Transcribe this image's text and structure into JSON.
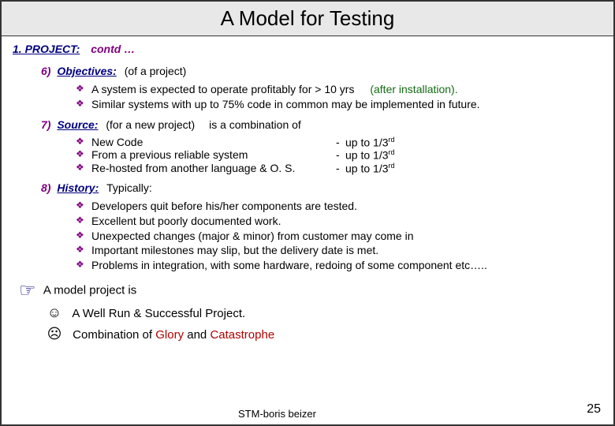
{
  "title": "A Model for Testing",
  "project": {
    "num_label": "1.  PROJECT:",
    "contd": "contd …"
  },
  "sections": {
    "s6": {
      "num": "6)",
      "title": "Objectives:",
      "desc": "(of a project)",
      "b1_a": "A system is expected to operate profitably for > 10 yrs",
      "b1_note": "(after installation).",
      "b2": "Similar systems with up to 75% code in common may be implemented in future."
    },
    "s7": {
      "num": "7)",
      "title": "Source:",
      "desc": "(for a new project)",
      "desc2": "is a combination of",
      "items": [
        {
          "txt": "New Code",
          "frac": "up to 1/3",
          "sup": "rd"
        },
        {
          "txt": "From a previous reliable system",
          "frac": "up to 1/3",
          "sup": "rd"
        },
        {
          "txt": "Re-hosted from another language & O. S.",
          "frac": "up to 1/3",
          "sup": "rd"
        }
      ]
    },
    "s8": {
      "num": "8)",
      "title": "History:",
      "desc": "Typically:",
      "bul": [
        "Developers quit before his/her components are tested.",
        "Excellent but poorly documented work.",
        "Unexpected changes (major & minor) from customer may come in",
        "Important milestones may slip, but the delivery date is met.",
        "Problems in integration, with some hardware, redoing of some component etc….."
      ]
    }
  },
  "footer": {
    "lead": "A model project is",
    "l1": "A Well Run & Successful Project.",
    "l2_a": "Combination of ",
    "l2_glory": "Glory",
    "l2_mid": " and ",
    "l2_cat": "Catastrophe"
  },
  "stm": "STM-boris beizer",
  "page": "25",
  "colors": {
    "heading_navy": "#000080",
    "purple": "#800080",
    "green_note": "#136c13",
    "red": "#b00000",
    "titlebar_bg": "#e8e8e8",
    "border": "#333333"
  }
}
